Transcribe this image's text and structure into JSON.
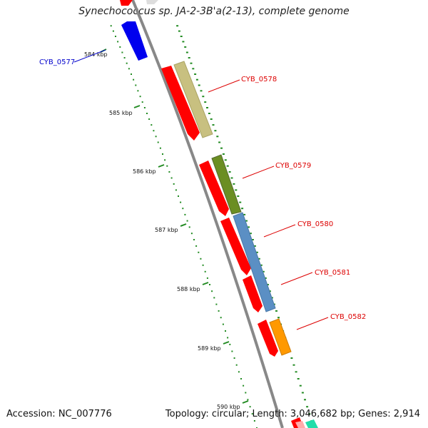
{
  "title": "Synechococcus sp. JA-2-3B'a(2-13), complete genome",
  "footer": {
    "accession": "Accession: NC_007776",
    "topology": "Topology: circular; Length: 3,046,682 bp; Genes: 2,914"
  },
  "kbp_ticks": [
    "584 kbp",
    "585 kbp",
    "586 kbp",
    "587 kbp",
    "588 kbp",
    "589 kbp",
    "590 kbp"
  ],
  "genes": [
    {
      "label": "CYB_0577",
      "strand": "-",
      "color": "#0000ee",
      "label_color": "#0000cc"
    },
    {
      "label": "CYB_0578",
      "strand": "+",
      "color": "#c8c080",
      "label_color": "#dd0000"
    },
    {
      "label": "CYB_0579",
      "strand": "+",
      "color": "#6b8e23",
      "label_color": "#dd0000"
    },
    {
      "label": "CYB_0580",
      "strand": "+",
      "color": "#5b8fc4",
      "label_color": "#dd0000"
    },
    {
      "label": "CYB_0581",
      "strand": "+",
      "color": "#5b8fc4",
      "label_color": "#dd0000"
    },
    {
      "label": "CYB_0582",
      "strand": "+",
      "color": "#ff9900",
      "label_color": "#dd0000"
    }
  ],
  "colors": {
    "backbone": "#888888",
    "cds": "#ff0000",
    "ticks": "#228b22"
  }
}
